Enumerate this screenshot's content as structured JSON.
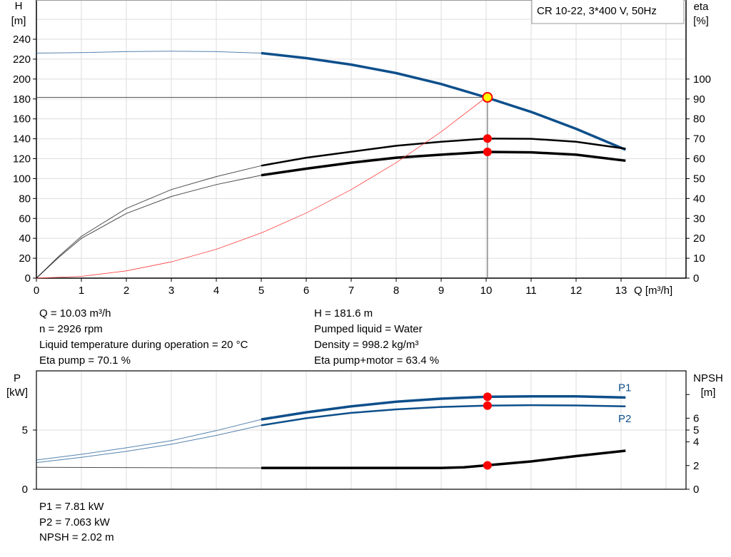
{
  "chart_data": [
    {
      "type": "line",
      "title": "CR 10-22, 3*400 V, 50Hz",
      "xlabel": "Q [m³/h]",
      "xlim": [
        0,
        14.4
      ],
      "xticks": [
        0,
        1,
        2,
        3,
        4,
        5,
        6,
        7,
        8,
        9,
        10,
        11,
        12,
        13
      ],
      "ylabel_left": [
        "H",
        "[m]"
      ],
      "ylim_left": [
        0,
        280
      ],
      "yticks_left": [
        0,
        20,
        40,
        60,
        80,
        100,
        120,
        140,
        160,
        180,
        200,
        220,
        240
      ],
      "ylabel_right": [
        "eta",
        "[%]"
      ],
      "ylim_right": [
        0,
        140
      ],
      "yticks_right": [
        0,
        10,
        20,
        30,
        40,
        50,
        60,
        70,
        80,
        90,
        100
      ],
      "grid": true,
      "series": [
        {
          "name": "H",
          "axis": "left",
          "color": "#0d4f8b",
          "x": [
            0,
            1,
            2,
            3,
            4,
            5,
            6,
            7,
            8,
            9,
            10,
            11,
            12,
            13.1
          ],
          "y": [
            226,
            226.5,
            227.5,
            228,
            227.5,
            226,
            221,
            214.5,
            206,
            195,
            181.6,
            167,
            150,
            129
          ]
        },
        {
          "name": "Eta pump",
          "axis": "right",
          "color": "#000000",
          "x": [
            0,
            0.5,
            1,
            2,
            3,
            4,
            5,
            6,
            7,
            8,
            9,
            10,
            11,
            12,
            13.1
          ],
          "y": [
            0,
            11,
            21,
            35,
            44.5,
            51,
            56.5,
            60.5,
            63.5,
            66.5,
            68.5,
            70.1,
            70,
            68.5,
            65
          ]
        },
        {
          "name": "Eta pump+motor",
          "axis": "right",
          "color": "#000000",
          "x": [
            0,
            0.5,
            1,
            2,
            3,
            4,
            5,
            6,
            7,
            8,
            9,
            10,
            11,
            12,
            13.1
          ],
          "y": [
            0,
            10.5,
            20,
            32.5,
            41,
            47,
            51.7,
            55,
            58,
            60.5,
            62,
            63.4,
            63.2,
            62,
            59
          ]
        },
        {
          "name": "System",
          "axis": "left",
          "color": "#ff3b3b",
          "x": [
            0,
            1,
            2,
            3,
            4,
            5,
            6,
            7,
            8,
            9,
            10
          ],
          "y": [
            0,
            1.8,
            7.3,
            16.3,
            29,
            45.4,
            65.4,
            89,
            116,
            147,
            181.6
          ]
        }
      ],
      "duty_point": {
        "Q": 10.03,
        "H": 181.6
      }
    },
    {
      "type": "line",
      "xlim": [
        0,
        14.4
      ],
      "ylabel_left": [
        "P",
        "[kW]"
      ],
      "ylim_left": [
        0,
        10
      ],
      "yticks_left": [
        0,
        5
      ],
      "ylabel_right": [
        "NPSH",
        "[m]"
      ],
      "ylim_right": [
        0,
        10
      ],
      "yticks_right": [
        0,
        2,
        4,
        5,
        6,
        8
      ],
      "yticklabels_right": [
        "0",
        "2",
        "4",
        "5",
        "6",
        ""
      ],
      "series": [
        {
          "name": "P1",
          "axis": "left",
          "color": "#0d4f8b",
          "x": [
            0,
            1,
            2,
            3,
            4,
            5,
            6,
            7,
            8,
            9,
            10,
            11,
            12,
            13.1
          ],
          "y": [
            2.47,
            2.95,
            3.5,
            4.1,
            4.95,
            5.9,
            6.5,
            7.0,
            7.4,
            7.65,
            7.81,
            7.85,
            7.85,
            7.75
          ]
        },
        {
          "name": "P2",
          "axis": "left",
          "color": "#0d4f8b",
          "x": [
            0,
            1,
            2,
            3,
            4,
            5,
            6,
            7,
            8,
            9,
            10,
            11,
            12,
            13.1
          ],
          "y": [
            2.25,
            2.7,
            3.2,
            3.8,
            4.55,
            5.4,
            6.0,
            6.45,
            6.75,
            6.95,
            7.063,
            7.1,
            7.08,
            7.0
          ]
        },
        {
          "name": "NPSH",
          "axis": "right",
          "color": "#000000",
          "x": [
            0,
            5,
            7,
            9,
            9.5,
            10,
            11,
            12,
            13.1
          ],
          "y": [
            1.85,
            1.8,
            1.8,
            1.8,
            1.85,
            2.02,
            2.35,
            2.8,
            3.25
          ]
        }
      ]
    }
  ],
  "info_top": {
    "left": [
      "Q = 10.03 m³/h",
      "n = 2926 rpm",
      "Liquid temperature during operation = 20 °C",
      "Eta pump = 70.1 %"
    ],
    "right": [
      "H = 181.6 m",
      "Pumped liquid = Water",
      "Density = 998.2 kg/m³",
      "Eta pump+motor = 63.4 %"
    ]
  },
  "info_bottom": [
    "P1 = 7.81 kW",
    "P2 = 7.063 kW",
    "NPSH = 2.02 m"
  ],
  "colors": {
    "curve_blue": "#0d4f8b",
    "marker": "#ff0000",
    "duty": "#ffff00"
  }
}
